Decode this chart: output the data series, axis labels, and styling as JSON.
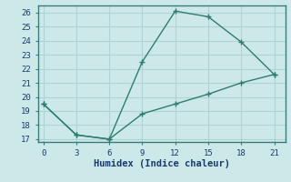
{
  "xlabel": "Humidex (Indice chaleur)",
  "line1_x": [
    0,
    3,
    6,
    9,
    12,
    15,
    18,
    21
  ],
  "line1_y": [
    19.5,
    17.3,
    17.0,
    22.5,
    26.1,
    25.7,
    23.9,
    21.6
  ],
  "line2_x": [
    0,
    3,
    6,
    9,
    12,
    15,
    18,
    21
  ],
  "line2_y": [
    19.5,
    17.3,
    17.0,
    18.8,
    19.5,
    20.2,
    21.0,
    21.6
  ],
  "line_color": "#2e7d6e",
  "bg_color": "#cce8e8",
  "grid_color": "#b0d4d4",
  "xlim": [
    -0.5,
    22
  ],
  "ylim": [
    16.8,
    26.5
  ],
  "xticks": [
    0,
    3,
    6,
    9,
    12,
    15,
    18,
    21
  ],
  "yticks": [
    17,
    18,
    19,
    20,
    21,
    22,
    23,
    24,
    25,
    26
  ],
  "marker": "+",
  "marker_size": 4,
  "line_width": 1.0,
  "tick_fontsize": 6.5,
  "xlabel_fontsize": 7.5,
  "font_family": "monospace"
}
